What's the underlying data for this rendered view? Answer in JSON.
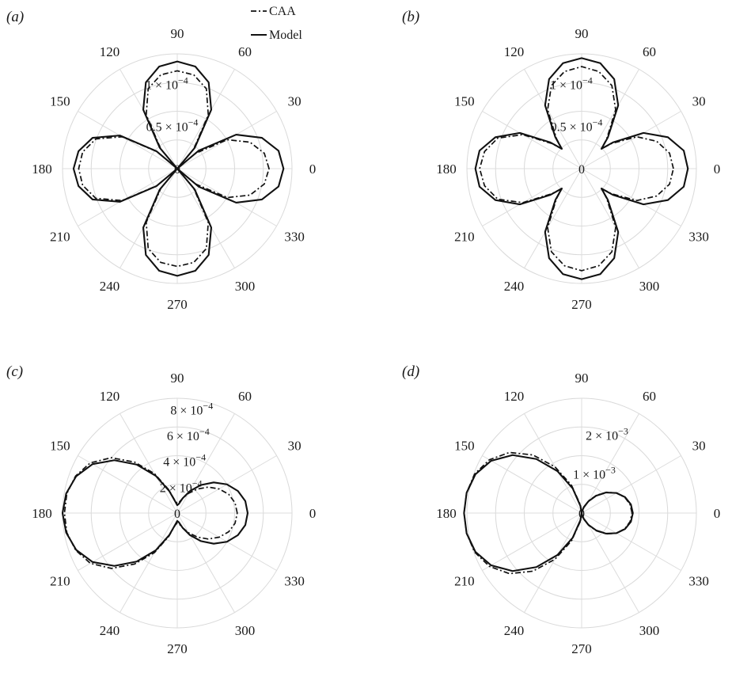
{
  "legend": {
    "items": [
      {
        "label": "CAA",
        "style": "dashdot"
      },
      {
        "label": "Model",
        "style": "solid"
      }
    ]
  },
  "chart_data": [
    {
      "type": "polar-line",
      "panel_label": "(a)",
      "theta_ticks": [
        "0",
        "30",
        "60",
        "90",
        "120",
        "150",
        "180",
        "210",
        "240",
        "270",
        "300",
        "330"
      ],
      "r_tick_labels": [
        "0",
        "0.5 × 10",
        "1 × 10"
      ],
      "r_tick_exponents": [
        "",
        "−4",
        "−4"
      ],
      "r_tick_values": [
        0,
        5e-05,
        0.0001
      ],
      "r_max": 0.000135,
      "theta": [
        0,
        10,
        20,
        30,
        40,
        45,
        50,
        60,
        70,
        80,
        90,
        100,
        110,
        120,
        130,
        135,
        140,
        150,
        160,
        170,
        180,
        190,
        200,
        210,
        220,
        225,
        230,
        240,
        250,
        260,
        270,
        280,
        290,
        300,
        310,
        315,
        320,
        330,
        340,
        350
      ],
      "series": [
        {
          "name": "CAA",
          "style": "dashdot",
          "values": [
            0.000108,
            0.000104,
            9.1e-05,
            6.8e-05,
            2.8e-05,
            0,
            3e-05,
            7.3e-05,
            0.0001,
            0.000112,
            0.000115,
            0.000112,
            0.0001,
            7.3e-05,
            3e-05,
            0,
            3.1e-05,
            7.5e-05,
            0.000102,
            0.000113,
            0.000116,
            0.000113,
            0.000102,
            7.5e-05,
            3.1e-05,
            0,
            3e-05,
            7.3e-05,
            0.0001,
            0.000112,
            0.000115,
            0.000112,
            0.0001,
            7.3e-05,
            3e-05,
            0,
            2.8e-05,
            6.8e-05,
            9.1e-05,
            0.000104
          ]
        },
        {
          "name": "Model",
          "style": "solid",
          "values": [
            0.000125,
            0.000121,
            0.000106,
            8e-05,
            3.3e-05,
            0,
            3.2e-05,
            8e-05,
            0.000108,
            0.000122,
            0.000126,
            0.000122,
            0.000108,
            8e-05,
            3.2e-05,
            0,
            3.2e-05,
            7.8e-05,
            0.000106,
            0.000118,
            0.000122,
            0.000118,
            0.000106,
            7.8e-05,
            3.2e-05,
            0,
            3.2e-05,
            8e-05,
            0.000108,
            0.000122,
            0.000126,
            0.000122,
            0.000108,
            8e-05,
            3.2e-05,
            0,
            3.3e-05,
            8e-05,
            0.000106,
            0.000121
          ]
        }
      ]
    },
    {
      "type": "polar-line",
      "panel_label": "(b)",
      "theta_ticks": [
        "0",
        "30",
        "60",
        "90",
        "120",
        "150",
        "180",
        "210",
        "240",
        "270",
        "300",
        "330"
      ],
      "r_tick_labels": [
        "0",
        "0.5 × 10",
        "1 × 10"
      ],
      "r_tick_exponents": [
        "",
        "−4",
        "−4"
      ],
      "r_tick_values": [
        0,
        5e-05,
        0.0001
      ],
      "r_max": 0.000135,
      "theta": [
        0,
        10,
        20,
        30,
        40,
        45,
        50,
        60,
        70,
        80,
        90,
        100,
        110,
        120,
        130,
        135,
        140,
        150,
        160,
        170,
        180,
        190,
        200,
        210,
        220,
        225,
        230,
        240,
        250,
        260,
        270,
        280,
        290,
        300,
        310,
        315,
        320,
        330,
        340,
        350
      ],
      "series": [
        {
          "name": "CAA",
          "style": "dashdot",
          "values": [
            0.000108,
            0.000105,
            9.4e-05,
            7.5e-05,
            4.6e-05,
            3.3e-05,
            4.6e-05,
            8e-05,
            0.000104,
            0.000116,
            0.00012,
            0.000116,
            0.000104,
            8e-05,
            4.6e-05,
            3.3e-05,
            4.6e-05,
            8e-05,
            0.000105,
            0.000116,
            0.00012,
            0.000116,
            0.000105,
            8e-05,
            4.6e-05,
            3.3e-05,
            4.6e-05,
            8e-05,
            0.000104,
            0.000116,
            0.00012,
            0.000116,
            0.000104,
            8e-05,
            4.6e-05,
            3.3e-05,
            4.6e-05,
            7.5e-05,
            9.4e-05,
            0.000105
          ]
        },
        {
          "name": "Model",
          "style": "solid",
          "values": [
            0.000125,
            0.000122,
            0.000108,
            8.4e-05,
            4.8e-05,
            3.3e-05,
            4.8e-05,
            8.6e-05,
            0.000112,
            0.000126,
            0.00013,
            0.000126,
            0.000112,
            8.6e-05,
            4.8e-05,
            3.3e-05,
            4.8e-05,
            8.4e-05,
            0.000108,
            0.000122,
            0.000125,
            0.000122,
            0.000108,
            8.4e-05,
            4.8e-05,
            3.3e-05,
            4.8e-05,
            8.6e-05,
            0.000112,
            0.000126,
            0.00013,
            0.000126,
            0.000112,
            8.6e-05,
            4.8e-05,
            3.3e-05,
            4.8e-05,
            8.4e-05,
            0.000108,
            0.000122
          ]
        }
      ]
    },
    {
      "type": "polar-line",
      "panel_label": "(c)",
      "theta_ticks": [
        "0",
        "30",
        "60",
        "90",
        "120",
        "150",
        "180",
        "210",
        "240",
        "270",
        "300",
        "330"
      ],
      "r_tick_labels": [
        "0",
        "2 × 10",
        "4 × 10",
        "6 × 10",
        "8 × 10"
      ],
      "r_tick_exponents": [
        "",
        "−4",
        "−4",
        "−4",
        "−4"
      ],
      "r_tick_values": [
        0,
        0.0002,
        0.0004,
        0.0006,
        0.0008
      ],
      "r_max": 0.00088,
      "theta": [
        0,
        10,
        20,
        30,
        40,
        50,
        60,
        70,
        80,
        90,
        100,
        110,
        120,
        130,
        140,
        150,
        160,
        170,
        180,
        190,
        200,
        210,
        220,
        230,
        240,
        250,
        260,
        270,
        280,
        290,
        300,
        310,
        320,
        330,
        340,
        350
      ],
      "series": [
        {
          "name": "CAA",
          "style": "dashdot",
          "values": [
            0.00046,
            0.00045,
            0.00042,
            0.00037,
            0.00031,
            0.00024,
            0.000175,
            0.00012,
            8.5e-05,
            7.5e-05,
            9.5e-05,
            0.00019,
            0.00035,
            0.00051,
            0.00066,
            0.00077,
            0.00083,
            0.00086,
            0.000865,
            0.00086,
            0.00083,
            0.00077,
            0.00066,
            0.00051,
            0.00035,
            0.00019,
            9.5e-05,
            7.5e-05,
            8.5e-05,
            0.00012,
            0.000175,
            0.00024,
            0.00031,
            0.00037,
            0.00042,
            0.00045
          ]
        },
        {
          "name": "Model",
          "style": "solid",
          "values": [
            0.00054,
            0.00053,
            0.000495,
            0.00044,
            0.000365,
            0.00028,
            0.000195,
            0.00012,
            7.2e-05,
            6e-05,
            9e-05,
            0.00018,
            0.00033,
            0.000485,
            0.00063,
            0.00075,
            0.000825,
            0.000865,
            0.00088,
            0.000865,
            0.000825,
            0.00075,
            0.00063,
            0.000485,
            0.00033,
            0.00018,
            9e-05,
            6e-05,
            7.2e-05,
            0.00012,
            0.000195,
            0.00028,
            0.000365,
            0.00044,
            0.000495,
            0.00053
          ]
        }
      ]
    },
    {
      "type": "polar-line",
      "panel_label": "(d)",
      "theta_ticks": [
        "0",
        "30",
        "60",
        "90",
        "120",
        "150",
        "180",
        "210",
        "240",
        "270",
        "300",
        "330"
      ],
      "r_tick_labels": [
        "0",
        "1 × 10",
        "2 × 10"
      ],
      "r_tick_exponents": [
        "",
        "−3",
        "−3"
      ],
      "r_tick_values": [
        0,
        0.001,
        0.002
      ],
      "r_max": 0.0028,
      "theta": [
        0,
        10,
        20,
        30,
        40,
        50,
        60,
        70,
        80,
        90,
        100,
        110,
        120,
        130,
        140,
        150,
        160,
        170,
        180,
        190,
        200,
        210,
        220,
        230,
        240,
        250,
        260,
        270,
        280,
        290,
        300,
        310,
        320,
        330,
        340,
        350
      ],
      "series": [
        {
          "name": "CAA",
          "style": "dashdot",
          "values": [
            0.00123,
            0.0012,
            0.00112,
            0.00098,
            0.00079,
            0.00057,
            0.00035,
            0.00016,
            5e-05,
            2e-05,
            0.00022,
            0.00072,
            0.0013,
            0.00185,
            0.0023,
            0.0026,
            0.00278,
            0.00285,
            0.00287,
            0.00285,
            0.00278,
            0.0026,
            0.0023,
            0.00185,
            0.0013,
            0.00072,
            0.00022,
            2e-05,
            5e-05,
            0.00016,
            0.00035,
            0.00057,
            0.00079,
            0.00098,
            0.00112,
            0.0012
          ]
        },
        {
          "name": "Model",
          "style": "solid",
          "values": [
            0.00125,
            0.00122,
            0.00113,
            0.00098,
            0.00078,
            0.00055,
            0.00033,
            0.00015,
            4e-05,
            0.0,
            0.00018,
            0.00064,
            0.00118,
            0.00172,
            0.0022,
            0.00255,
            0.00276,
            0.00285,
            0.00287,
            0.00285,
            0.00276,
            0.00255,
            0.0022,
            0.00172,
            0.00118,
            0.00064,
            0.00018,
            0.0,
            4e-05,
            0.00015,
            0.00033,
            0.00055,
            0.00078,
            0.00098,
            0.00113,
            0.00122
          ]
        }
      ]
    }
  ]
}
